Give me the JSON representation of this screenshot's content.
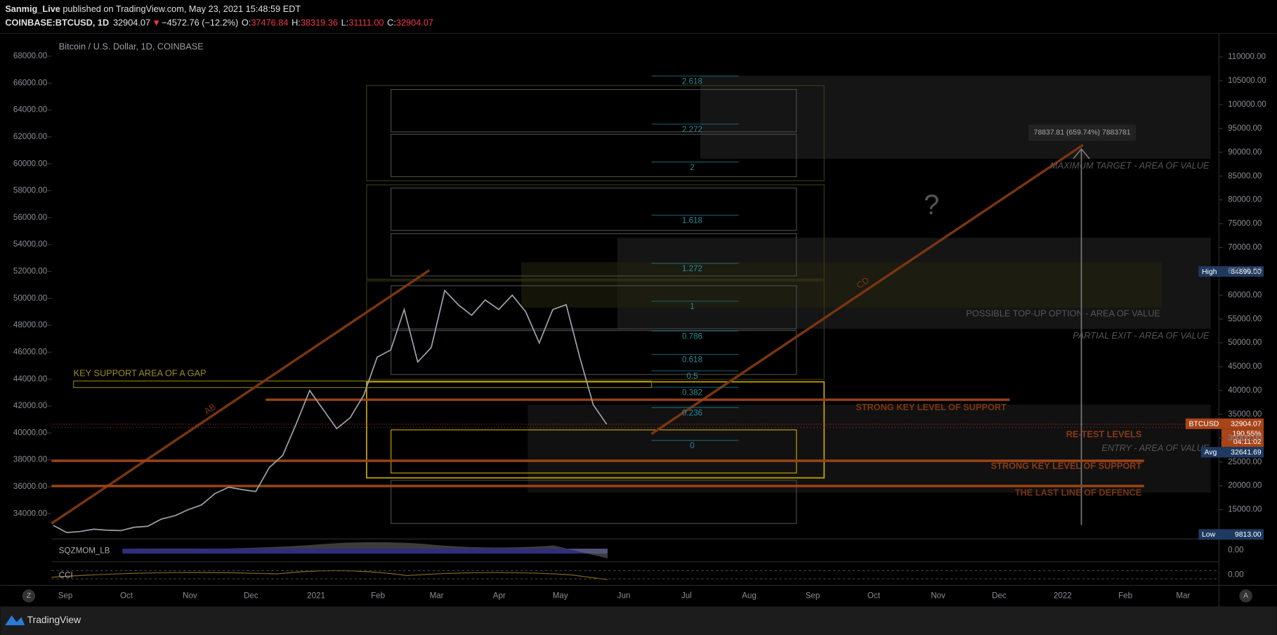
{
  "header": {
    "publisher": "Sanmig_Live",
    "published": "published on TradingView.com, May 23, 2021 15:48:59 EDT",
    "symbol": "COINBASE:BTCUSD, 1D",
    "last": "32904.07",
    "change": "−4572.76 (−12.2%)",
    "o_label": "O:",
    "open": "37476.84",
    "h_label": "H:",
    "high": "38319.36",
    "l_label": "L:",
    "low": "31111.00",
    "c_label": "C:",
    "close": "32904.07"
  },
  "chart": {
    "title": "Bitcoin / U.S. Dollar, 1D, COINBASE",
    "left_ticks": [
      {
        "value": 68000,
        "label": "68000.00"
      },
      {
        "value": 66000,
        "label": "66000.00"
      },
      {
        "value": 64000,
        "label": "64000.00"
      },
      {
        "value": 62000,
        "label": "62000.00"
      },
      {
        "value": 60000,
        "label": "60000.00"
      },
      {
        "value": 58000,
        "label": "58000.00"
      },
      {
        "value": 56000,
        "label": "56000.00"
      },
      {
        "value": 54000,
        "label": "54000.00"
      },
      {
        "value": 52000,
        "label": "52000.00"
      },
      {
        "value": 50000,
        "label": "50000.00"
      },
      {
        "value": 48000,
        "label": "48000.00"
      },
      {
        "value": 46000,
        "label": "46000.00"
      },
      {
        "value": 44000,
        "label": "44000.00"
      },
      {
        "value": 42000,
        "label": "42000.00"
      },
      {
        "value": 40000,
        "label": "40000.00"
      },
      {
        "value": 38000,
        "label": "38000.00"
      },
      {
        "value": 36000,
        "label": "36000.00"
      },
      {
        "value": 34000,
        "label": "34000.00"
      }
    ],
    "right_ticks": [
      {
        "value": 110000,
        "label": "110000.00"
      },
      {
        "value": 105000,
        "label": "105000.00"
      },
      {
        "value": 100000,
        "label": "100000.00"
      },
      {
        "value": 95000,
        "label": "95000.00"
      },
      {
        "value": 90000,
        "label": "90000.00"
      },
      {
        "value": 85000,
        "label": "85000.00"
      },
      {
        "value": 80000,
        "label": "80000.00"
      },
      {
        "value": 75000,
        "label": "75000.00"
      },
      {
        "value": 70000,
        "label": "70000.00"
      },
      {
        "value": 65000,
        "label": "65000.00"
      },
      {
        "value": 60000,
        "label": "60000.00"
      },
      {
        "value": 55000,
        "label": "55000.00"
      },
      {
        "value": 50000,
        "label": "50000.00"
      },
      {
        "value": 45000,
        "label": "45000.00"
      },
      {
        "value": 40000,
        "label": "40000.00"
      },
      {
        "value": 35000,
        "label": "35000.00"
      },
      {
        "value": 30000,
        "label": "30000.00"
      },
      {
        "value": 25000,
        "label": "25000.00"
      },
      {
        "value": 20000,
        "label": "20000.00"
      },
      {
        "value": 15000,
        "label": "15000.00"
      }
    ],
    "x_labels": [
      "Sep",
      "Oct",
      "Nov",
      "Dec",
      "2021",
      "Feb",
      "Mar",
      "Apr",
      "May",
      "Jun",
      "Jul",
      "Aug",
      "Sep",
      "Oct",
      "Nov",
      "Dec",
      "2022",
      "Feb",
      "Mar"
    ],
    "price": [
      11700,
      10200,
      10400,
      10900,
      10700,
      10600,
      11300,
      11500,
      13000,
      13700,
      15000,
      16000,
      18400,
      19700,
      19200,
      18800,
      23800,
      26400,
      33000,
      40000,
      36000,
      32000,
      34300,
      39000,
      47000,
      48500,
      57000,
      46000,
      49000,
      61000,
      58000,
      55800,
      59000,
      57000,
      60000,
      56500,
      50000,
      57000,
      58000,
      47000,
      37000,
      32904
    ],
    "fib_levels": [
      2.618,
      2.272,
      2,
      1.618,
      1.272,
      1,
      0.786,
      0.618,
      0.5,
      0.382,
      0.236,
      0
    ],
    "annotations": {
      "gap": "KEY SUPPORT AREA OF A GAP",
      "ab": "AB",
      "cd": "CD",
      "question": "?",
      "max_target": "MAXIMUM TARGET - AREA OF VALUE",
      "top_up": "POSSIBLE TOP-UP OPTION - AREA OF VALUE",
      "partial_exit": "PARTIAL EXIT - AREA OF VALUE",
      "strong1": "STRONG KEY LEVEL OF SUPPORT",
      "retest": "RE-TEST LEVELS",
      "entry": "ENTRY - AREA OF VALUE",
      "strong2": "STRONG KEY LEVEL OF SUPPORT",
      "last_line": "THE LAST LINE OF DEFENCE",
      "measure": "78837.81 (659.74%) 7883781"
    },
    "price_labels": {
      "high_label": "High",
      "high": "64899.00",
      "symbol": "BTCUSD",
      "last": "32904.07",
      "pct": "190.55%",
      "countdown": "04:11:02",
      "avg_label": "Avg",
      "avg": "32641.69",
      "low_label": "Low",
      "low": "9813.00"
    },
    "indicators": {
      "sqz": "SQZMOM_LB",
      "sqz_value": "0.00",
      "cci": "CCI",
      "cci_value": "0.00"
    },
    "buttons": {
      "left": "Z",
      "right": "A"
    }
  },
  "footer": {
    "brand": "TradingView"
  }
}
